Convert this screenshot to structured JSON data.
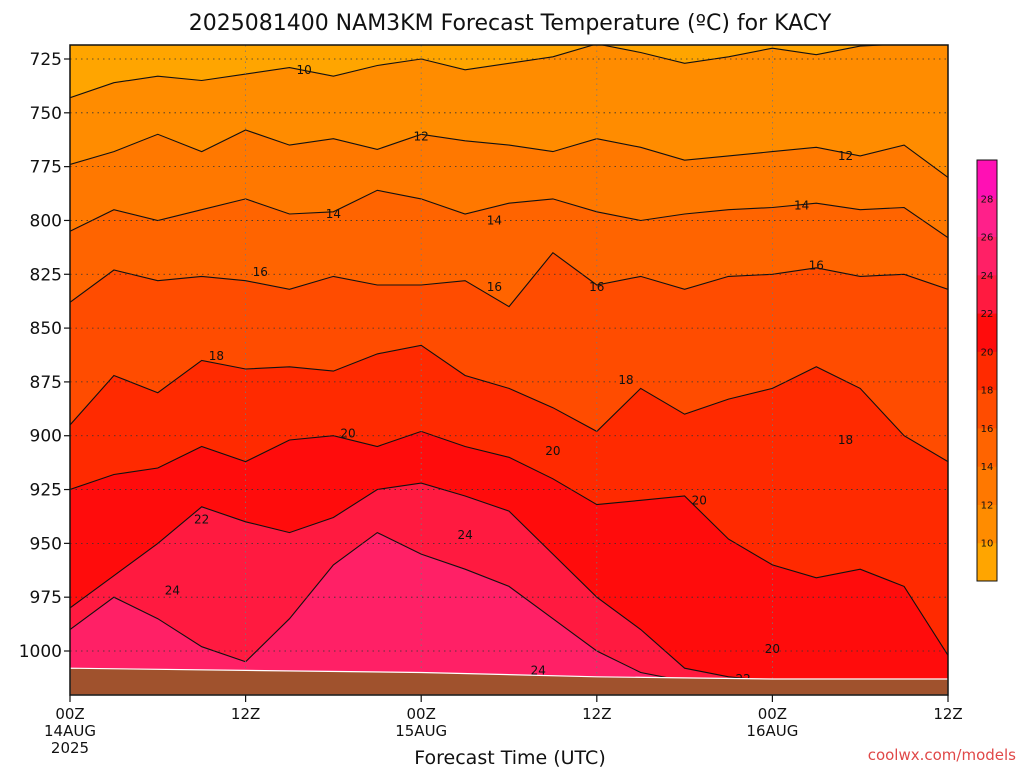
{
  "chart_data": {
    "type": "heatmap",
    "title": "2025081400 NAM3KM Forecast Temperature (ºC) for KACY",
    "xlabel": "Forecast Time (UTC)",
    "ylabel": "",
    "x_ticks": [
      {
        "hour": 0,
        "lines": [
          "00Z",
          "14AUG",
          "2025"
        ]
      },
      {
        "hour": 12,
        "lines": [
          "12Z"
        ]
      },
      {
        "hour": 24,
        "lines": [
          "00Z",
          "15AUG"
        ]
      },
      {
        "hour": 36,
        "lines": [
          "12Z"
        ]
      },
      {
        "hour": 48,
        "lines": [
          "00Z",
          "16AUG"
        ]
      },
      {
        "hour": 60,
        "lines": [
          "12Z"
        ]
      }
    ],
    "xlim": [
      0,
      60
    ],
    "y_ticks": [
      "725",
      "750",
      "775",
      "800",
      "825",
      "850",
      "875",
      "900",
      "925",
      "950",
      "975",
      "1000"
    ],
    "ylim": [
      1020,
      718
    ],
    "grid": true,
    "colorbar": {
      "ticks": [
        "10",
        "12",
        "14",
        "16",
        "18",
        "20",
        "22",
        "24",
        "26",
        "28"
      ],
      "levels": [
        8,
        10,
        12,
        14,
        16,
        18,
        20,
        22,
        24,
        26,
        28,
        30
      ],
      "colors": [
        "#ffa500",
        "#ff8c00",
        "#ff7800",
        "#ff6400",
        "#ff4c00",
        "#ff2a00",
        "#ff0c0c",
        "#ff1a40",
        "#ff2066",
        "#ff208a",
        "#ff10b4"
      ]
    },
    "isotherms": [
      {
        "level": 10,
        "x": [
          0,
          3,
          6,
          9,
          12,
          15,
          18,
          21,
          24,
          27,
          30,
          33,
          36,
          39,
          42,
          45,
          48,
          51,
          54,
          57,
          60
        ],
        "y": [
          743,
          736,
          733,
          735,
          732,
          729,
          733,
          728,
          725,
          730,
          727,
          724,
          718,
          722,
          727,
          724,
          720,
          723,
          719,
          718,
          718
        ]
      },
      {
        "level": 12,
        "x": [
          0,
          3,
          6,
          9,
          12,
          15,
          18,
          21,
          24,
          27,
          30,
          33,
          36,
          39,
          42,
          45,
          48,
          51,
          54,
          57,
          60
        ],
        "y": [
          774,
          768,
          760,
          768,
          758,
          765,
          762,
          767,
          760,
          763,
          765,
          768,
          762,
          766,
          772,
          770,
          768,
          766,
          770,
          765,
          780
        ]
      },
      {
        "level": 14,
        "x": [
          0,
          3,
          6,
          9,
          12,
          15,
          18,
          21,
          24,
          27,
          30,
          33,
          36,
          39,
          42,
          45,
          48,
          51,
          54,
          57,
          60
        ],
        "y": [
          805,
          795,
          800,
          795,
          790,
          797,
          796,
          786,
          790,
          797,
          792,
          790,
          796,
          800,
          797,
          795,
          794,
          792,
          795,
          794,
          808
        ]
      },
      {
        "level": 16,
        "x": [
          0,
          3,
          6,
          9,
          12,
          15,
          18,
          21,
          24,
          27,
          30,
          33,
          36,
          39,
          42,
          45,
          48,
          51,
          54,
          57,
          60
        ],
        "y": [
          838,
          823,
          828,
          826,
          828,
          832,
          826,
          830,
          830,
          828,
          840,
          815,
          830,
          826,
          832,
          826,
          825,
          822,
          826,
          825,
          832
        ]
      },
      {
        "level": 18,
        "x": [
          0,
          3,
          6,
          9,
          12,
          15,
          18,
          21,
          24,
          27,
          30,
          33,
          36,
          39,
          42,
          45,
          48,
          51,
          54,
          57,
          60
        ],
        "y": [
          895,
          872,
          880,
          865,
          869,
          868,
          870,
          862,
          858,
          872,
          878,
          887,
          898,
          878,
          890,
          883,
          878,
          868,
          878,
          900,
          912
        ]
      },
      {
        "level": 20,
        "x": [
          0,
          3,
          6,
          9,
          12,
          15,
          18,
          21,
          24,
          27,
          30,
          33,
          36,
          39,
          42,
          45,
          48,
          51,
          54,
          57,
          60
        ],
        "y": [
          925,
          918,
          915,
          905,
          912,
          902,
          900,
          905,
          898,
          905,
          910,
          920,
          932,
          930,
          928,
          948,
          960,
          966,
          962,
          970,
          1002
        ]
      },
      {
        "level": 22,
        "x": [
          0,
          3,
          6,
          9,
          12,
          15,
          18,
          21,
          24,
          27,
          30,
          33,
          36,
          39,
          42,
          45,
          48,
          51,
          54,
          57,
          60
        ],
        "y": [
          980,
          965,
          950,
          933,
          940,
          945,
          938,
          925,
          922,
          928,
          935,
          955,
          975,
          990,
          1008,
          1012,
          1014,
          1014,
          1014,
          1014,
          1014
        ]
      },
      {
        "level": 24,
        "x": [
          0,
          3,
          6,
          9,
          12,
          15,
          18,
          21,
          24,
          27,
          30,
          33,
          36,
          39,
          42,
          45
        ],
        "y": [
          990,
          975,
          985,
          998,
          1005,
          985,
          960,
          945,
          955,
          962,
          970,
          985,
          1000,
          1010,
          1014,
          1014
        ]
      }
    ],
    "contour_labels": [
      {
        "text": "10",
        "x": 16,
        "y": 730
      },
      {
        "text": "12",
        "x": 24,
        "y": 761
      },
      {
        "text": "12",
        "x": 53,
        "y": 770
      },
      {
        "text": "14",
        "x": 18,
        "y": 797
      },
      {
        "text": "14",
        "x": 29,
        "y": 800
      },
      {
        "text": "14",
        "x": 50,
        "y": 793
      },
      {
        "text": "16",
        "x": 13,
        "y": 824
      },
      {
        "text": "16",
        "x": 29,
        "y": 831
      },
      {
        "text": "16",
        "x": 36,
        "y": 831
      },
      {
        "text": "16",
        "x": 51,
        "y": 821
      },
      {
        "text": "18",
        "x": 10,
        "y": 863
      },
      {
        "text": "18",
        "x": 38,
        "y": 874
      },
      {
        "text": "18",
        "x": 53,
        "y": 902
      },
      {
        "text": "20",
        "x": 19,
        "y": 899
      },
      {
        "text": "20",
        "x": 33,
        "y": 907
      },
      {
        "text": "20",
        "x": 43,
        "y": 930
      },
      {
        "text": "20",
        "x": 48,
        "y": 999
      },
      {
        "text": "22",
        "x": 9,
        "y": 939
      },
      {
        "text": "22",
        "x": 46,
        "y": 1013
      },
      {
        "text": "24",
        "x": 27,
        "y": 946
      },
      {
        "text": "24",
        "x": 7,
        "y": 972
      },
      {
        "text": "24",
        "x": 32,
        "y": 1009
      }
    ],
    "ground": {
      "x": [
        0,
        12,
        24,
        36,
        48,
        60
      ],
      "y": [
        1008,
        1009,
        1010,
        1012,
        1013,
        1013
      ],
      "color": "#a0522d"
    }
  },
  "credit": "coolwx.com/models"
}
